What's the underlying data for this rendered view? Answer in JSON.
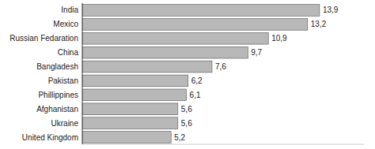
{
  "chart_data": {
    "type": "bar",
    "orientation": "horizontal",
    "categories": [
      "United Kingdom",
      "Ukraine",
      "Afghanistan",
      "Phillippines",
      "Pakistan",
      "Bangladesh",
      "China",
      "Russian Fedaration",
      "Mexico",
      "India"
    ],
    "values": [
      5.2,
      5.6,
      5.6,
      6.1,
      6.2,
      7.6,
      9.7,
      10.9,
      13.2,
      13.9
    ],
    "value_labels": [
      "5,2",
      "5,6",
      "5,6",
      "6,1",
      "6,2",
      "7,6",
      "9,7",
      "10,9",
      "13,2",
      "13,9"
    ],
    "data_labels": true,
    "color": "#b8b8b8",
    "xlim": [
      0,
      16.5
    ],
    "tick_labels": "y"
  }
}
